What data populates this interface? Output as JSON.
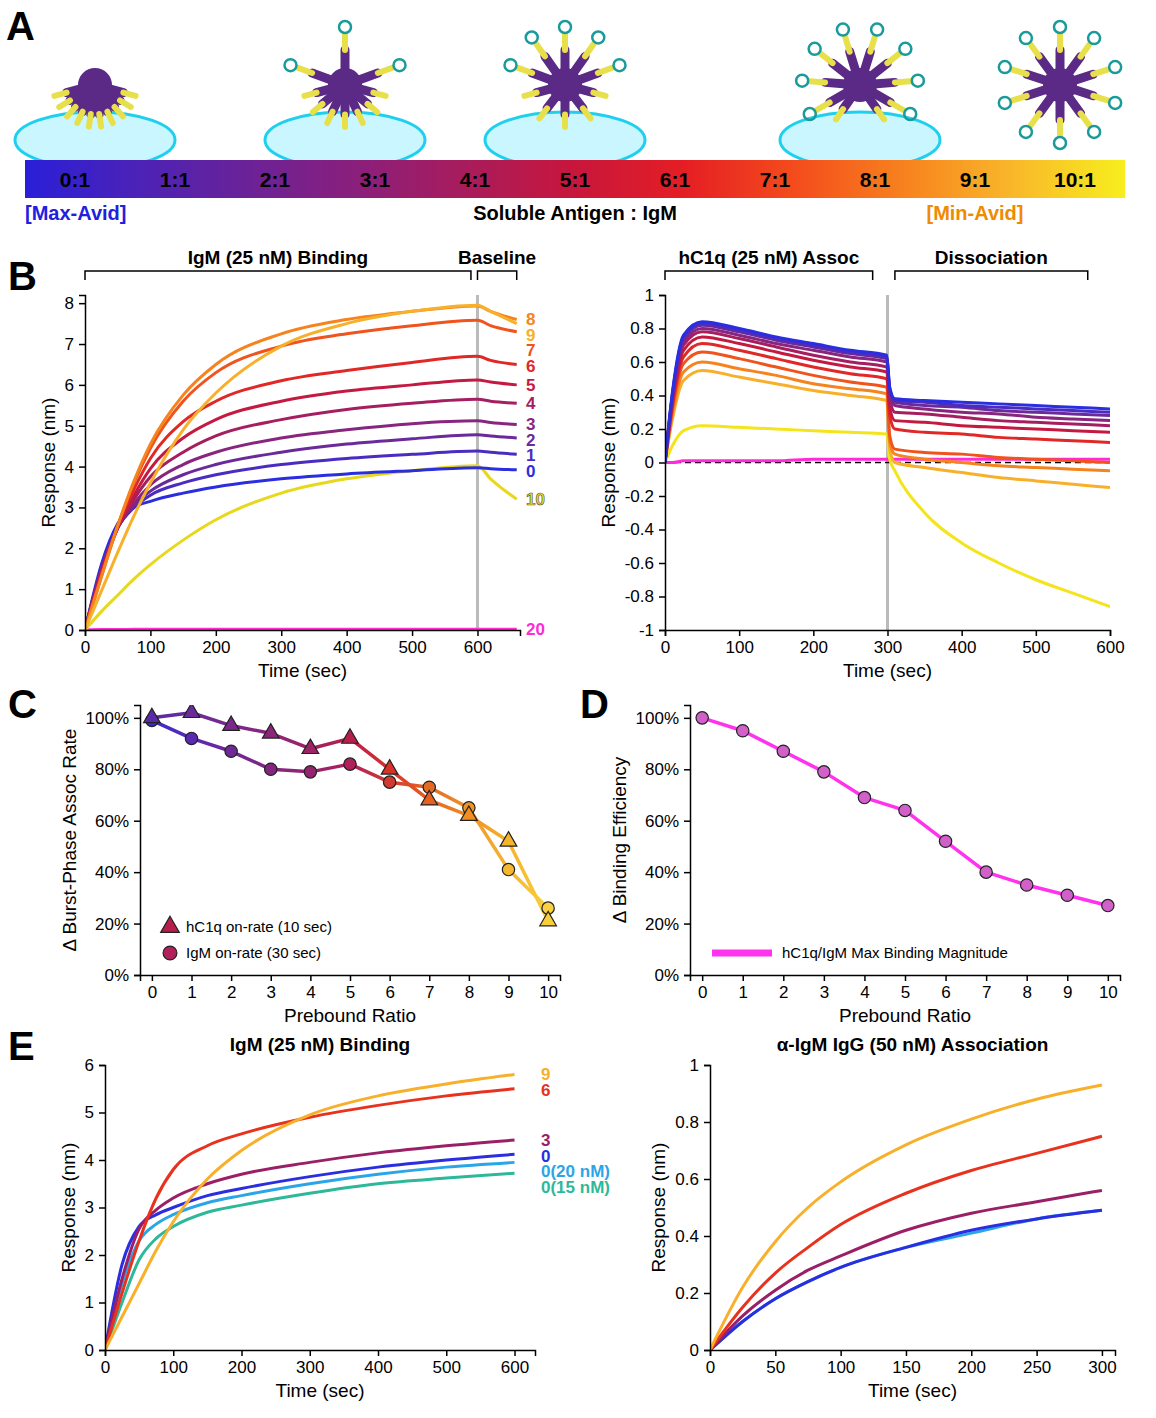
{
  "chart_data": [
    {
      "panel": "A",
      "type": "colorbar",
      "categories": [
        "0:1",
        "1:1",
        "2:1",
        "3:1",
        "4:1",
        "5:1",
        "6:1",
        "7:1",
        "8:1",
        "9:1",
        "10:1"
      ],
      "colors": [
        "#2a1fd8",
        "#4b22b8",
        "#6a2298",
        "#8a1f7c",
        "#a81c5c",
        "#c8163c",
        "#e51e24",
        "#f44c1c",
        "#f7821e",
        "#f9b82a",
        "#f7ee1e"
      ],
      "annotations": [
        {
          "text": "[Max-Avid]",
          "color": "#2020e0"
        },
        {
          "text": "Soluble Antigen : IgM"
        },
        {
          "text": "[Min-Avid]",
          "color": "#f08a00"
        }
      ]
    },
    {
      "panel": "B",
      "type": "line",
      "xlabel": "Time (sec)",
      "ylabel": "Response (nm)",
      "x": [
        0,
        25,
        50,
        75,
        100,
        150,
        200,
        300,
        400,
        500,
        600,
        620,
        660
      ],
      "xlim": [
        0,
        665
      ],
      "ylim": [
        0,
        8.2
      ],
      "xticks": [
        0,
        100,
        200,
        300,
        400,
        500,
        600
      ],
      "yticks": [
        0,
        1,
        2,
        3,
        4,
        5,
        6,
        7,
        8
      ],
      "legend": "line_end",
      "vline": 600,
      "annotations": [
        {
          "text": "IgM (25 nM) Binding",
          "x0": 0,
          "x1": 590
        },
        {
          "text": "Baseline",
          "x0": 600,
          "x1": 660
        }
      ],
      "series": [
        {
          "name": "9",
          "color": "#f8b02a",
          "values": [
            0,
            0.95,
            1.9,
            2.8,
            3.6,
            4.9,
            5.8,
            6.95,
            7.5,
            7.8,
            7.95,
            7.8,
            7.5
          ]
        },
        {
          "name": "8",
          "color": "#f5841e",
          "values": [
            0,
            1.3,
            2.55,
            3.65,
            4.55,
            5.75,
            6.5,
            7.25,
            7.6,
            7.8,
            7.93,
            7.8,
            7.6
          ]
        },
        {
          "name": "7",
          "color": "#f0531c",
          "values": [
            0,
            1.3,
            2.55,
            3.6,
            4.45,
            5.6,
            6.3,
            6.95,
            7.25,
            7.45,
            7.58,
            7.45,
            7.3
          ]
        },
        {
          "name": "6",
          "color": "#e02826",
          "values": [
            0,
            1.35,
            2.55,
            3.45,
            4.2,
            5.1,
            5.6,
            6.1,
            6.35,
            6.55,
            6.7,
            6.6,
            6.5
          ]
        },
        {
          "name": "5",
          "color": "#c41a42",
          "values": [
            0,
            1.4,
            2.5,
            3.3,
            3.95,
            4.7,
            5.15,
            5.6,
            5.85,
            6.0,
            6.12,
            6.07,
            6.0
          ]
        },
        {
          "name": "4",
          "color": "#a51f60",
          "values": [
            0,
            1.4,
            2.5,
            3.2,
            3.75,
            4.35,
            4.75,
            5.15,
            5.4,
            5.55,
            5.65,
            5.6,
            5.55
          ]
        },
        {
          "name": "3",
          "color": "#88257e",
          "values": [
            0,
            1.45,
            2.5,
            3.1,
            3.55,
            4.05,
            4.35,
            4.7,
            4.9,
            5.05,
            5.12,
            5.08,
            5.03
          ]
        },
        {
          "name": "2",
          "color": "#6a2a9c",
          "values": [
            0,
            1.5,
            2.5,
            3.05,
            3.4,
            3.8,
            4.05,
            4.35,
            4.55,
            4.68,
            4.78,
            4.75,
            4.7
          ]
        },
        {
          "name": "1",
          "color": "#4a2cc0",
          "values": [
            0,
            1.5,
            2.5,
            3.0,
            3.3,
            3.6,
            3.8,
            4.05,
            4.2,
            4.3,
            4.38,
            4.35,
            4.3
          ]
        },
        {
          "name": "0",
          "color": "#2a2ee0",
          "values": [
            0,
            1.6,
            2.6,
            3.0,
            3.15,
            3.35,
            3.5,
            3.7,
            3.82,
            3.9,
            3.97,
            3.95,
            3.92
          ]
        },
        {
          "name": "10",
          "color": "#e8d81c",
          "values": [
            0,
            0.45,
            0.85,
            1.25,
            1.6,
            2.2,
            2.7,
            3.35,
            3.7,
            3.9,
            4.02,
            3.7,
            3.2
          ]
        },
        {
          "name": "20",
          "color": "#ff2bd6",
          "values": [
            0,
            0.01,
            0.01,
            0.02,
            0.02,
            0.02,
            0.02,
            0.02,
            0.02,
            0.02,
            0.02,
            0.02,
            0.02
          ]
        }
      ]
    },
    {
      "type": "line",
      "xlabel": "Time (sec)",
      "ylabel": "Response (nm)",
      "x": [
        0,
        10,
        25,
        50,
        100,
        150,
        200,
        250,
        299,
        303,
        310,
        350,
        400,
        450,
        500,
        550,
        600
      ],
      "xlim": [
        0,
        600
      ],
      "ylim": [
        -1,
        1
      ],
      "xticks": [
        0,
        100,
        200,
        300,
        400,
        500,
        600
      ],
      "yticks": [
        -1,
        -0.8,
        -0.6,
        -0.4,
        -0.2,
        0,
        0.2,
        0.4,
        0.6,
        0.8,
        1
      ],
      "vline": 300,
      "hline": 0,
      "annotations": [
        {
          "text": "hC1q (25 nM) Assoc",
          "x0": 0,
          "x1": 280
        },
        {
          "text": "Dissociation",
          "x0": 310,
          "x1": 570
        }
      ],
      "series": [
        {
          "color": "#2a2ee0",
          "values": [
            0,
            0.42,
            0.76,
            0.84,
            0.8,
            0.75,
            0.71,
            0.67,
            0.64,
            0.45,
            0.38,
            0.37,
            0.36,
            0.35,
            0.34,
            0.33,
            0.32
          ]
        },
        {
          "color": "#4a2cc0",
          "values": [
            0,
            0.41,
            0.75,
            0.83,
            0.79,
            0.74,
            0.7,
            0.66,
            0.63,
            0.44,
            0.37,
            0.36,
            0.34,
            0.33,
            0.32,
            0.31,
            0.3
          ]
        },
        {
          "color": "#6a2a9c",
          "values": [
            0,
            0.4,
            0.74,
            0.82,
            0.78,
            0.73,
            0.69,
            0.65,
            0.62,
            0.43,
            0.36,
            0.34,
            0.33,
            0.31,
            0.3,
            0.29,
            0.28
          ]
        },
        {
          "color": "#88257e",
          "values": [
            0,
            0.39,
            0.72,
            0.8,
            0.76,
            0.71,
            0.67,
            0.63,
            0.6,
            0.41,
            0.34,
            0.32,
            0.3,
            0.29,
            0.27,
            0.26,
            0.25
          ]
        },
        {
          "color": "#a51f60",
          "values": [
            0,
            0.38,
            0.7,
            0.78,
            0.74,
            0.69,
            0.64,
            0.6,
            0.57,
            0.38,
            0.3,
            0.29,
            0.27,
            0.25,
            0.24,
            0.23,
            0.22
          ]
        },
        {
          "color": "#c41a42",
          "values": [
            0,
            0.36,
            0.67,
            0.75,
            0.71,
            0.66,
            0.61,
            0.57,
            0.54,
            0.33,
            0.25,
            0.24,
            0.22,
            0.21,
            0.2,
            0.19,
            0.18
          ]
        },
        {
          "color": "#e02826",
          "values": [
            0,
            0.34,
            0.63,
            0.71,
            0.67,
            0.62,
            0.57,
            0.53,
            0.5,
            0.28,
            0.2,
            0.18,
            0.17,
            0.15,
            0.14,
            0.13,
            0.12
          ]
        },
        {
          "color": "#f0531c",
          "values": [
            0,
            0.32,
            0.59,
            0.66,
            0.62,
            0.57,
            0.52,
            0.48,
            0.45,
            0.16,
            0.08,
            0.06,
            0.05,
            0.03,
            0.02,
            0.01,
            0.0
          ]
        },
        {
          "color": "#f5841e",
          "values": [
            0,
            0.29,
            0.54,
            0.6,
            0.56,
            0.52,
            0.47,
            0.44,
            0.41,
            0.12,
            0.05,
            0.02,
            0.0,
            -0.02,
            -0.03,
            -0.04,
            -0.05
          ]
        },
        {
          "color": "#f8b02a",
          "values": [
            0,
            0.26,
            0.49,
            0.55,
            0.51,
            0.47,
            0.43,
            0.4,
            0.37,
            0.08,
            0.0,
            -0.03,
            -0.06,
            -0.09,
            -0.11,
            -0.13,
            -0.15
          ]
        },
        {
          "color": "#f4e41c",
          "values": [
            0,
            0.1,
            0.19,
            0.22,
            0.21,
            0.2,
            0.19,
            0.18,
            0.17,
            0.02,
            -0.05,
            -0.3,
            -0.48,
            -0.6,
            -0.7,
            -0.78,
            -0.86
          ]
        },
        {
          "color": "#ff2bd6",
          "values": [
            0,
            0,
            0.01,
            0.01,
            0.01,
            0.01,
            0.02,
            0.02,
            0.02,
            0.02,
            0.02,
            0.02,
            0.02,
            0.02,
            0.02,
            0.02,
            0.02
          ]
        }
      ]
    },
    {
      "panel": "C",
      "type": "line",
      "xlabel": "Prebound Ratio",
      "ylabel": "Δ Burst-Phase Assoc Rate",
      "x": [
        0,
        1,
        2,
        3,
        4,
        5,
        6,
        7,
        8,
        9,
        10
      ],
      "xlim": [
        -0.3,
        10.3
      ],
      "ylim": [
        0,
        105
      ],
      "xticks": [
        0,
        1,
        2,
        3,
        4,
        5,
        6,
        7,
        8,
        9,
        10
      ],
      "yticks": [
        {
          "value": 0,
          "label": "0%"
        },
        {
          "value": 20,
          "label": "20%"
        },
        {
          "value": 40,
          "label": "40%"
        },
        {
          "value": 60,
          "label": "60%"
        },
        {
          "value": 80,
          "label": "80%"
        },
        {
          "value": 100,
          "label": "100%"
        }
      ],
      "legend": "lower left",
      "series": [
        {
          "name": "hC1q on-rate (10 sec)",
          "marker": "triangle",
          "colors": [
            "#5a2aa8",
            "#6b2a9a",
            "#7a288a",
            "#8a257a",
            "#9e2266",
            "#b81e4a",
            "#d8332a",
            "#e8601e",
            "#f08e22",
            "#f5b42c",
            "#f8cf3a"
          ],
          "values": [
            100,
            102,
            97,
            94,
            88,
            92,
            80,
            68,
            62,
            52,
            21
          ]
        },
        {
          "name": "IgM on-rate (30 sec)",
          "marker": "circle",
          "colors": [
            "#3b2bd0",
            "#5a2ab0",
            "#702896",
            "#822680",
            "#942470",
            "#b0205a",
            "#d03a30",
            "#e46a24",
            "#f09428",
            "#f5b630",
            "#f8d040"
          ],
          "values": [
            99,
            92,
            87,
            80,
            79,
            82,
            75,
            73,
            65,
            41,
            26
          ]
        }
      ]
    },
    {
      "panel": "D",
      "type": "line",
      "xlabel": "Prebound Ratio",
      "ylabel": "Δ Binding Efficiency",
      "x": [
        0,
        1,
        2,
        3,
        4,
        5,
        6,
        7,
        8,
        9,
        10
      ],
      "xlim": [
        -0.3,
        10.3
      ],
      "ylim": [
        0,
        105
      ],
      "xticks": [
        0,
        1,
        2,
        3,
        4,
        5,
        6,
        7,
        8,
        9,
        10
      ],
      "yticks": [
        {
          "value": 0,
          "label": "0%"
        },
        {
          "value": 20,
          "label": "20%"
        },
        {
          "value": 40,
          "label": "40%"
        },
        {
          "value": 60,
          "label": "60%"
        },
        {
          "value": 80,
          "label": "80%"
        },
        {
          "value": 100,
          "label": "100%"
        }
      ],
      "legend": "lower left",
      "series": [
        {
          "name": "hC1q/IgM Max Binding Magnitude",
          "marker": "circle",
          "color": "#ff33ee",
          "values": [
            100,
            95,
            87,
            79,
            69,
            64,
            52,
            40,
            35,
            31,
            27
          ]
        }
      ]
    },
    {
      "panel": "E",
      "type": "line",
      "title": "IgM (25 nM) Binding",
      "xlabel": "Time (sec)",
      "ylabel": "Response (nm)",
      "x": [
        0,
        25,
        50,
        75,
        100,
        150,
        200,
        300,
        400,
        500,
        600
      ],
      "xlim": [
        0,
        630
      ],
      "ylim": [
        0,
        6
      ],
      "xticks": [
        0,
        100,
        200,
        300,
        400,
        500,
        600
      ],
      "yticks": [
        0,
        1,
        2,
        3,
        4,
        5,
        6
      ],
      "legend": "line_end",
      "series": [
        {
          "name": "9",
          "color": "#f8b02a",
          "values": [
            0,
            0.7,
            1.4,
            2.1,
            2.7,
            3.6,
            4.2,
            4.95,
            5.35,
            5.6,
            5.8
          ]
        },
        {
          "name": "6",
          "color": "#e8321e",
          "values": [
            0,
            1.2,
            2.3,
            3.2,
            3.8,
            4.3,
            4.55,
            4.9,
            5.15,
            5.35,
            5.5
          ]
        },
        {
          "name": "3",
          "color": "#9a1f66",
          "values": [
            0,
            1.5,
            2.55,
            2.95,
            3.2,
            3.5,
            3.7,
            3.95,
            4.15,
            4.3,
            4.42
          ]
        },
        {
          "name": "0",
          "color": "#2a2ee0",
          "values": [
            0,
            1.8,
            2.6,
            2.85,
            3.0,
            3.25,
            3.4,
            3.65,
            3.85,
            4.0,
            4.12
          ]
        },
        {
          "name": "0(20 nM)",
          "color": "#2aa6e8",
          "values": [
            0,
            1.4,
            2.3,
            2.65,
            2.85,
            3.1,
            3.25,
            3.5,
            3.7,
            3.85,
            3.95
          ]
        },
        {
          "name": "0(15 nM)",
          "color": "#2eb89a",
          "values": [
            0,
            1.0,
            1.9,
            2.35,
            2.6,
            2.9,
            3.05,
            3.3,
            3.5,
            3.62,
            3.72
          ]
        }
      ]
    },
    {
      "type": "line",
      "title": "α-IgM IgG (50 nM) Association",
      "xlabel": "Time (sec)",
      "ylabel": "Response (nm)",
      "x": [
        0,
        25,
        50,
        75,
        100,
        150,
        200,
        250,
        300
      ],
      "xlim": [
        0,
        310
      ],
      "ylim": [
        0,
        1
      ],
      "xticks": [
        0,
        50,
        100,
        150,
        200,
        250,
        300
      ],
      "yticks": [
        0,
        0.2,
        0.4,
        0.6,
        0.8,
        1
      ],
      "series": [
        {
          "color": "#f8b02a",
          "values": [
            0,
            0.22,
            0.38,
            0.5,
            0.59,
            0.72,
            0.81,
            0.88,
            0.93
          ]
        },
        {
          "color": "#e8321e",
          "values": [
            0,
            0.15,
            0.27,
            0.36,
            0.44,
            0.55,
            0.63,
            0.69,
            0.75
          ]
        },
        {
          "color": "#9a1f66",
          "values": [
            0,
            0.12,
            0.21,
            0.28,
            0.33,
            0.42,
            0.48,
            0.52,
            0.56
          ]
        },
        {
          "color": "#2a2ee0",
          "values": [
            0,
            0.1,
            0.18,
            0.24,
            0.29,
            0.36,
            0.42,
            0.46,
            0.49
          ]
        },
        {
          "color": "#2aa6e8",
          "values": [
            0,
            0.1,
            0.18,
            0.24,
            0.29,
            0.36,
            0.41,
            0.46,
            0.49
          ]
        }
      ]
    }
  ]
}
